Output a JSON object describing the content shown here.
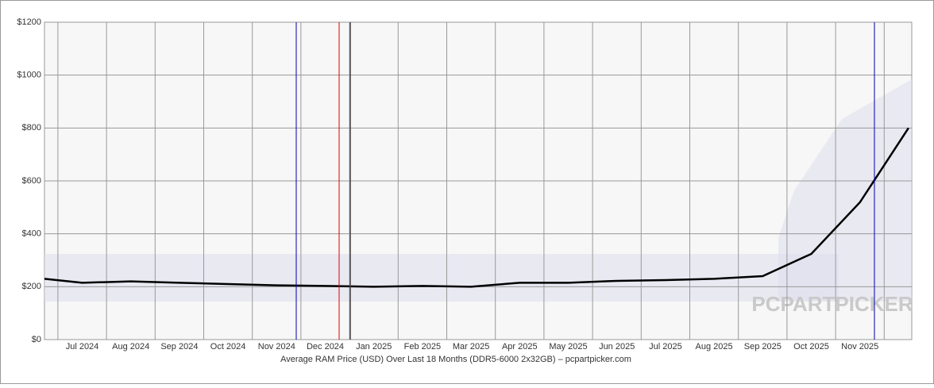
{
  "chart_data": {
    "type": "line",
    "x_label": "Average RAM Price (USD) Over Last 18 Months (DDR5-6000 2x32GB) – pcpartpicker.com",
    "watermark": "PCPARTPICKER",
    "categories": [
      null,
      "Jul 2024",
      "Aug 2024",
      "Sep 2024",
      "Oct 2024",
      "Nov 2024",
      "Dec 2024",
      "Jan 2025",
      "Feb 2025",
      "Mar 2025",
      "Apr 2025",
      "May 2025",
      "Jun 2025",
      "Jul 2025",
      "Aug 2025",
      "Sep 2025",
      "Oct 2025",
      "Nov 2025",
      null
    ],
    "series": [
      {
        "name": "Average price",
        "color": "#000000",
        "values": [
          230,
          215,
          220,
          215,
          210,
          205,
          203,
          200,
          203,
          200,
          215,
          215,
          222,
          225,
          230,
          240,
          324,
          519,
          800
        ]
      }
    ],
    "ylim": [
      0,
      1200
    ],
    "yticks": [
      {
        "value": 0,
        "label": "$0"
      },
      {
        "value": 200,
        "label": "$200"
      },
      {
        "value": 400,
        "label": "$400"
      },
      {
        "value": 600,
        "label": "$600"
      },
      {
        "value": 800,
        "label": "$800"
      },
      {
        "value": 1000,
        "label": "$1000"
      },
      {
        "value": 1200,
        "label": "$1200"
      }
    ],
    "grid": true
  }
}
